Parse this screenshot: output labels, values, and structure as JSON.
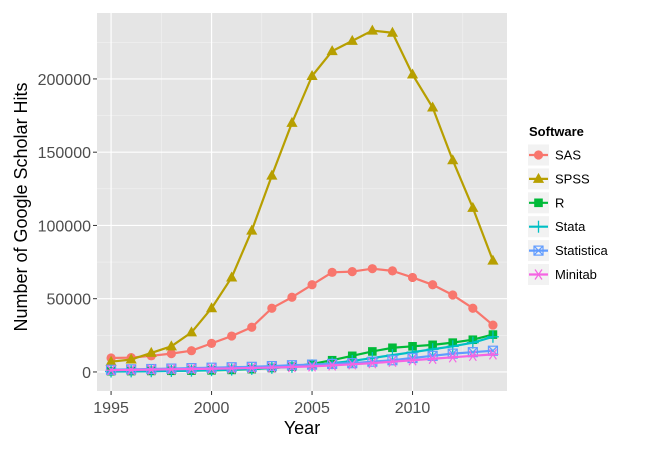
{
  "chart_data": {
    "type": "line",
    "xlabel": "Year",
    "ylabel": "Number of Google Scholar Hits",
    "xlim": [
      1994.3,
      2014.7
    ],
    "ylim": [
      -13000,
      245000
    ],
    "x_ticks": [
      1995,
      2000,
      2005,
      2010
    ],
    "y_ticks": [
      0,
      50000,
      100000,
      150000,
      200000
    ],
    "grid": true,
    "legend": {
      "title": "Software",
      "position": "right"
    },
    "x": [
      1995,
      1996,
      1997,
      1998,
      1999,
      2000,
      2001,
      2002,
      2003,
      2004,
      2005,
      2006,
      2007,
      2008,
      2009,
      2010,
      2011,
      2012,
      2013,
      2014
    ],
    "series": [
      {
        "name": "SAS",
        "color": "#F8766D",
        "marker": "circle",
        "values": [
          9500,
          9800,
          11000,
          12500,
          14500,
          19500,
          24500,
          30500,
          43500,
          51000,
          59500,
          68000,
          68500,
          70500,
          69000,
          64500,
          59500,
          52500,
          43500,
          32000
        ]
      },
      {
        "name": "SPSS",
        "color": "#B79F00",
        "marker": "triangle",
        "values": [
          7000,
          8500,
          13000,
          17500,
          27000,
          43500,
          64500,
          96500,
          134000,
          170000,
          202000,
          219000,
          226000,
          233000,
          231500,
          203000,
          180500,
          144500,
          112000,
          76000
        ]
      },
      {
        "name": "R",
        "color": "#00BA38",
        "marker": "square",
        "values": [
          500,
          600,
          700,
          800,
          900,
          1100,
          1400,
          1900,
          2700,
          3600,
          5500,
          8000,
          11000,
          14000,
          16500,
          17500,
          18500,
          20000,
          22000,
          25500
        ]
      },
      {
        "name": "Stata",
        "color": "#00BFC4",
        "marker": "plus",
        "values": [
          300,
          400,
          500,
          700,
          900,
          1200,
          1600,
          2100,
          2800,
          3500,
          4500,
          6000,
          7500,
          9500,
          11500,
          13500,
          15500,
          17500,
          20000,
          24000
        ]
      },
      {
        "name": "Statistica",
        "color": "#619CFF",
        "marker": "boxtimes",
        "values": [
          1500,
          1800,
          2000,
          2300,
          2600,
          2900,
          3200,
          3500,
          4000,
          4600,
          5000,
          5500,
          6000,
          7000,
          8000,
          9500,
          11000,
          12500,
          13500,
          14500
        ]
      },
      {
        "name": "Minitab",
        "color": "#F564E3",
        "marker": "asterisk",
        "values": [
          1200,
          1400,
          1600,
          1800,
          2000,
          2200,
          2400,
          2700,
          3000,
          3400,
          3800,
          4500,
          5200,
          6000,
          7000,
          8000,
          9000,
          10000,
          11000,
          12000
        ]
      }
    ]
  }
}
